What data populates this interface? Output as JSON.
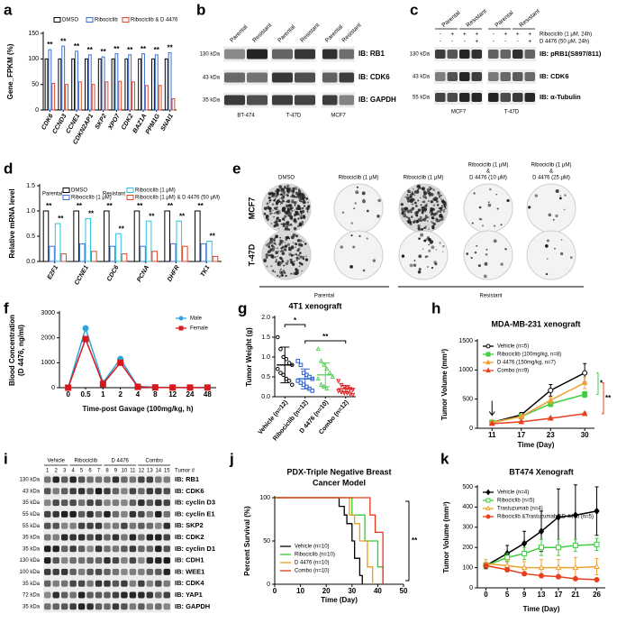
{
  "chart_data": [
    {
      "panel": "a",
      "type": "bar",
      "ylabel": "Gene_FPKM (%)",
      "categories": [
        "CDK6",
        "CCND3",
        "CCNE1",
        "CDKN2AP1",
        "SKP2",
        "XPO7",
        "CDK2",
        "BAZ1A",
        "PPM1G",
        "SNAI1"
      ],
      "series": [
        {
          "name": "DMSO",
          "color": "#000000",
          "values": [
            100,
            100,
            100,
            100,
            100,
            100,
            100,
            100,
            100,
            100
          ]
        },
        {
          "name": "Ribociclib",
          "color": "#3a6fd8",
          "values": [
            118,
            125,
            115,
            108,
            104,
            110,
            108,
            110,
            108,
            112
          ]
        },
        {
          "name": "Ribociclib & D 4476",
          "color": "#e0452b",
          "values": [
            52,
            50,
            55,
            50,
            55,
            56,
            55,
            48,
            48,
            22
          ]
        }
      ],
      "annotations": [
        "**",
        "**",
        "**",
        "**",
        "**",
        "**",
        "**",
        "**",
        "**",
        "**"
      ],
      "ylim": [
        0,
        150
      ],
      "yticks": [
        0,
        50,
        100,
        150
      ]
    },
    {
      "panel": "d",
      "type": "bar",
      "ylabel": "Relative mRNA level",
      "categories": [
        "E2F1",
        "CCNE1",
        "CDC6",
        "PCNA",
        "DHFR",
        "TK1"
      ],
      "legend_groups": [
        "Parental",
        "Resistant"
      ],
      "series": [
        {
          "name": "DMSO",
          "color": "#000000",
          "values": [
            1.0,
            1.0,
            1.0,
            1.0,
            1.0,
            1.0
          ]
        },
        {
          "name": "Ribociclib (1 μM)",
          "color": "#3a6fd8",
          "values": [
            0.3,
            0.35,
            0.3,
            0.3,
            0.35,
            0.35
          ]
        },
        {
          "name": "Ribociclib (1 μM)",
          "color": "#27c4e0",
          "values": [
            0.75,
            0.85,
            0.55,
            0.8,
            0.8,
            0.4
          ]
        },
        {
          "name": "Ribociclib (1 μM) & D 4476 (50 μM)",
          "color": "#e0452b",
          "values": [
            0.15,
            0.2,
            0.15,
            0.2,
            0.3,
            0.1
          ]
        }
      ],
      "annotations": [
        [
          "**",
          "**"
        ],
        [
          "**",
          "**"
        ],
        [
          "**",
          "**"
        ],
        [
          "**",
          "**"
        ],
        [
          "**",
          "**"
        ],
        [
          "**",
          "**"
        ]
      ],
      "ylim": [
        0,
        1.5
      ],
      "yticks": [
        {
          "value": 0,
          "label": "0.0"
        },
        0.5,
        {
          "value": 1,
          "label": "1.0"
        },
        1.5
      ]
    },
    {
      "panel": "f",
      "type": "line",
      "ylabel": [
        "Blood Concentration",
        "(D 4476, ng/ml)"
      ],
      "xlabel": "Time-post Gavage (100mg/kg, h)",
      "categories": [
        "0",
        "0.5",
        "1",
        "2",
        "4",
        "8",
        "12",
        "24",
        "48"
      ],
      "series": [
        {
          "name": "Male",
          "color": "#2fa4de",
          "marker": "circle",
          "values": [
            0,
            2380,
            200,
            1150,
            50,
            20,
            10,
            5,
            5
          ]
        },
        {
          "name": "Female",
          "color": "#d7191c",
          "marker": "square",
          "values": [
            0,
            1950,
            150,
            1000,
            30,
            10,
            5,
            5,
            5
          ]
        }
      ],
      "legend": "upper right",
      "ylim": [
        0,
        3000
      ],
      "yticks": [
        0,
        1000,
        2000,
        3000
      ]
    },
    {
      "panel": "g",
      "type": "dotplot",
      "title": "4T1 xenograft",
      "ylabel": "Tumor Weight (g)",
      "categories": [
        "Vehicle (n=12)",
        "Ribociclib (n=12)",
        "D 4476 (n=10)",
        "Combo (n=12)"
      ],
      "colors": [
        "#000000",
        "#2a5bd7",
        "#5bd15b",
        "#e02020"
      ],
      "markers": [
        "circle",
        "square",
        "triangle",
        "triangle-down"
      ],
      "values": [
        0.8,
        0.45,
        0.55,
        0.2
      ],
      "errors": [
        0.45,
        0.25,
        0.3,
        0.08
      ],
      "points": [
        [
          1.5,
          1.2,
          1.0,
          0.95,
          0.85,
          0.8,
          0.7,
          0.6,
          0.55,
          0.45,
          0.4,
          0.3
        ],
        [
          0.9,
          0.8,
          0.6,
          0.55,
          0.5,
          0.45,
          0.4,
          0.35,
          0.3,
          0.25,
          0.2,
          0.15
        ],
        [
          1.2,
          0.9,
          0.8,
          0.7,
          0.6,
          0.5,
          0.45,
          0.3,
          0.25,
          0.2
        ],
        [
          0.4,
          0.3,
          0.25,
          0.22,
          0.2,
          0.18,
          0.15,
          0.12,
          0.1,
          0.1,
          0.08,
          0.05
        ]
      ],
      "annotations": [
        "*",
        "**"
      ],
      "ylim": [
        0,
        2
      ],
      "yticks": [
        {
          "value": 0,
          "label": "0.0"
        },
        0.5,
        {
          "value": 1,
          "label": "1.0"
        },
        1.5,
        {
          "value": 2,
          "label": "2.0"
        }
      ]
    },
    {
      "panel": "h",
      "type": "line",
      "title": "MDA-MB-231 xenograft",
      "ylabel": "Tumor Volume (mm³)",
      "xlabel": "Time (Day)",
      "x": [
        11,
        17,
        23,
        30
      ],
      "xlim": [
        8,
        32
      ],
      "xticks": [
        11,
        17,
        23,
        30
      ],
      "series": [
        {
          "name": "Vehicle (n=5)",
          "color": "#000000",
          "marker": "circle",
          "hollow": true,
          "values": [
            100,
            230,
            650,
            950
          ],
          "errors": [
            10,
            40,
            100,
            160
          ]
        },
        {
          "name": "Ribociclib (100mg/kg, n=8)",
          "color": "#3fcf3f",
          "marker": "square",
          "values": [
            100,
            200,
            420,
            580
          ],
          "errors": [
            10,
            30,
            50,
            50
          ]
        },
        {
          "name": "D 4476 (150mg/kg, n=7)",
          "color": "#f0a030",
          "marker": "triangle",
          "values": [
            100,
            200,
            480,
            780
          ],
          "errors": [
            10,
            30,
            60,
            100
          ]
        },
        {
          "name": "Combo (n=9)",
          "color": "#e8401c",
          "marker": "triangle",
          "values": [
            80,
            110,
            170,
            250
          ],
          "errors": [
            10,
            15,
            20,
            20
          ]
        }
      ],
      "annotations": [
        "*",
        "**"
      ],
      "legend": "upper left",
      "ylim": [
        0,
        1500
      ],
      "yticks": [
        0,
        500,
        1000,
        1500
      ]
    },
    {
      "panel": "j",
      "type": "step",
      "title": [
        "PDX-Triple Negative Breast",
        "Cancer Model"
      ],
      "ylabel": "Percent Survival (%)",
      "xlabel": "Time (Day)",
      "xlim": [
        0,
        50
      ],
      "xticks": [
        0,
        10,
        20,
        30,
        40,
        50
      ],
      "series": [
        {
          "name": "Vehicle (n=10)",
          "color": "#000000",
          "x": [
            0,
            25,
            27,
            28,
            30,
            31,
            33,
            34
          ],
          "values": [
            100,
            90,
            80,
            70,
            50,
            30,
            10,
            0
          ]
        },
        {
          "name": "Ribociclib (n=10)",
          "color": "#33cc33",
          "x": [
            0,
            30,
            35,
            40,
            42
          ],
          "values": [
            100,
            80,
            50,
            20,
            0
          ]
        },
        {
          "name": "D 4476 (n=10)",
          "color": "#f09a1a",
          "x": [
            0,
            29,
            31,
            33,
            36,
            38
          ],
          "values": [
            100,
            80,
            70,
            50,
            20,
            0
          ]
        },
        {
          "name": "Combo (n=10)",
          "color": "#e23a1a",
          "x": [
            0,
            37,
            39,
            42
          ],
          "values": [
            100,
            80,
            60,
            0
          ]
        }
      ],
      "annotations": [
        "**"
      ],
      "legend": "lower left",
      "ylim": [
        0,
        100
      ],
      "yticks": [
        0,
        50,
        100
      ]
    },
    {
      "panel": "k",
      "type": "line",
      "title": "BT474 Xenograft",
      "ylabel": "Tumor Volume (mm³)",
      "xlabel": "Time (Day)",
      "x": [
        0,
        5,
        9,
        13,
        17,
        21,
        26
      ],
      "xlim": [
        -2,
        28
      ],
      "xticks": [
        0,
        5,
        9,
        13,
        17,
        21,
        26
      ],
      "series": [
        {
          "name": "Vehicle (n=4)",
          "color": "#000000",
          "marker": "diamond",
          "values": [
            110,
            170,
            220,
            280,
            350,
            360,
            380
          ],
          "errors": [
            15,
            40,
            60,
            100,
            140,
            150,
            120
          ]
        },
        {
          "name": "Ribociclib (n=5)",
          "color": "#3fcf3f",
          "marker": "square",
          "hollow": true,
          "values": [
            110,
            150,
            170,
            200,
            200,
            210,
            215
          ],
          "errors": [
            10,
            20,
            30,
            40,
            40,
            30,
            30
          ]
        },
        {
          "name": "Trastuzumab (n=4)",
          "color": "#f0a030",
          "marker": "triangle",
          "hollow": true,
          "values": [
            120,
            110,
            100,
            100,
            100,
            100,
            105
          ],
          "errors": [
            20,
            30,
            30,
            40,
            40,
            50,
            40
          ]
        },
        {
          "name": "Ribociclib &Trastuzumab &D 4476 (n=5)",
          "color": "#e8401c",
          "marker": "circle",
          "values": [
            110,
            90,
            70,
            60,
            55,
            45,
            40
          ],
          "errors": [
            10,
            10,
            10,
            10,
            10,
            8,
            5
          ]
        }
      ],
      "legend": "upper left",
      "ylim": [
        0,
        500
      ],
      "yticks": [
        0,
        100,
        200,
        300,
        400,
        500
      ]
    }
  ],
  "blots": {
    "b": {
      "panel": "b",
      "headers": [
        "Parental",
        "Resistant"
      ],
      "cell_lines": [
        "BT-474",
        "T-47D",
        "MCF7"
      ],
      "kda": [
        "130 kDa",
        "43 kDa",
        "35 kDa"
      ],
      "ib": [
        "IB: RB1",
        "IB: CDK6",
        "IB: GAPDH"
      ]
    },
    "c": {
      "panel": "c",
      "treatments": [
        "Ribociclib (1 μM, 24h)",
        "D 4476 (50 μM, 24h)"
      ],
      "signs": [
        [
          "-",
          "+",
          "+",
          "+",
          "-",
          "+",
          "+",
          "+"
        ],
        [
          "-",
          "-",
          "-",
          "+",
          "-",
          "-",
          "-",
          "+"
        ]
      ],
      "headers": [
        "Parental",
        "Resistant"
      ],
      "cell_lines": [
        "MCF7",
        "T-47D"
      ],
      "kda": [
        "130 kDa",
        "43 kDa",
        "55 kDa"
      ],
      "ib": [
        "IB: pRB1(S897/811)",
        "IB: CDK6",
        "IB: α-Tubulin"
      ]
    },
    "e": {
      "panel": "e",
      "columns": [
        [
          "DMSO"
        ],
        [
          "Ribociclib (1 μM)"
        ],
        [
          "Ribociclib (1 μM)"
        ],
        [
          "Ribociclib (1 μM)",
          "&",
          "D 4476 (10 μM)"
        ],
        [
          "Ribociclib (1 μM)",
          "&",
          "D 4476 (25 μM)"
        ]
      ],
      "rows": [
        "MCF7",
        "T-47D"
      ],
      "groups": [
        "Parental",
        "Resistant"
      ]
    },
    "i": {
      "panel": "i",
      "groups": [
        "Vehicle",
        "Ribociclib",
        "D 4476",
        "Combo"
      ],
      "tumor_label": "Tumor #",
      "lanes": [
        1,
        2,
        3,
        4,
        5,
        6,
        7,
        8,
        9,
        10,
        11,
        12,
        13,
        14,
        15
      ],
      "kda": [
        "130 kDa",
        "43 kDa",
        "35 kDa",
        "55 kDa",
        "55 kDa",
        "35 kDa",
        "35 kDa",
        "130 kDa",
        "100 kDa",
        "35 kDa",
        "72 kDa",
        "35 kDa"
      ],
      "ib": [
        "IB: RB1",
        "IB: CDK6",
        "IB: cyclin D3",
        "IB: cyclin E1",
        "IB: SKP2",
        "IB: CDK2",
        "IB: cyclin D1",
        "IB: CDH1",
        "IB: WEE1",
        "IB: CDK4",
        "IB: YAP1",
        "IB: GAPDH"
      ]
    }
  }
}
